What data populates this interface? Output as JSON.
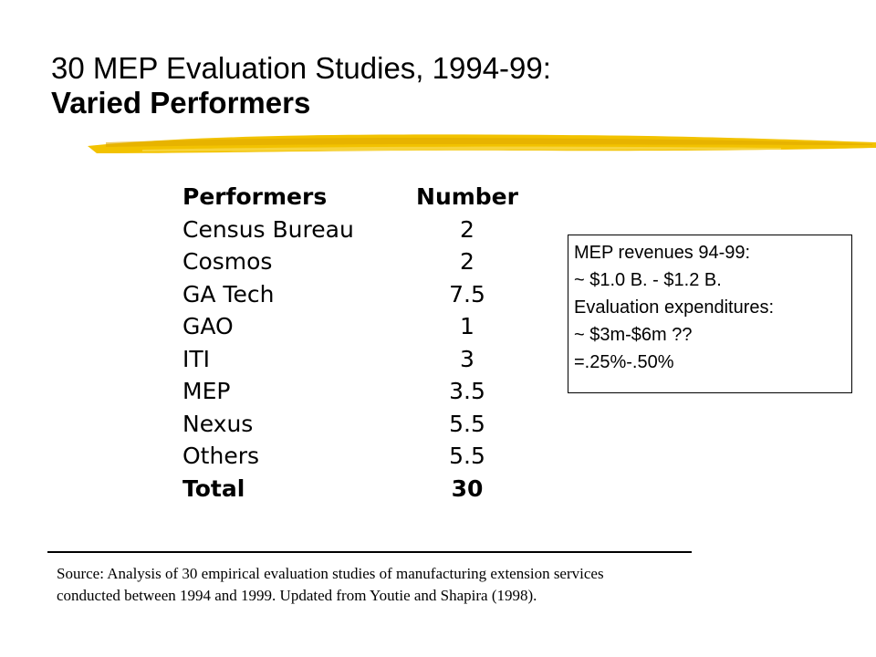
{
  "title": {
    "line1": "30 MEP Evaluation Studies, 1994-99:",
    "line2": "Varied Performers"
  },
  "table": {
    "headers": [
      "Performers",
      "Number"
    ],
    "rows": [
      {
        "performer": "Census Bureau",
        "number": "2"
      },
      {
        "performer": "Cosmos",
        "number": "2"
      },
      {
        "performer": "GA Tech",
        "number": "7.5"
      },
      {
        "performer": "GAO",
        "number": "1"
      },
      {
        "performer": "ITI",
        "number": "3"
      },
      {
        "performer": "MEP",
        "number": "3.5"
      },
      {
        "performer": "Nexus",
        "number": "5.5"
      },
      {
        "performer": "Others",
        "number": "5.5"
      }
    ],
    "total": {
      "performer": "Total",
      "number": "30"
    }
  },
  "callout": {
    "lines": [
      "MEP revenues 94-99:",
      "~ $1.0 B. - $1.2 B.",
      "Evaluation expenditures:",
      "~ $3m-$6m ??",
      "=.25%-.50%"
    ]
  },
  "source": {
    "lines": [
      "Source: Analysis of 30 empirical evaluation studies of manufacturing extension services",
      "conducted between 1994 and 1999.  Updated from Youtie and Shapira (1998)."
    ]
  },
  "colors": {
    "brush": "#f2c200",
    "text": "#000000",
    "background": "#ffffff"
  }
}
